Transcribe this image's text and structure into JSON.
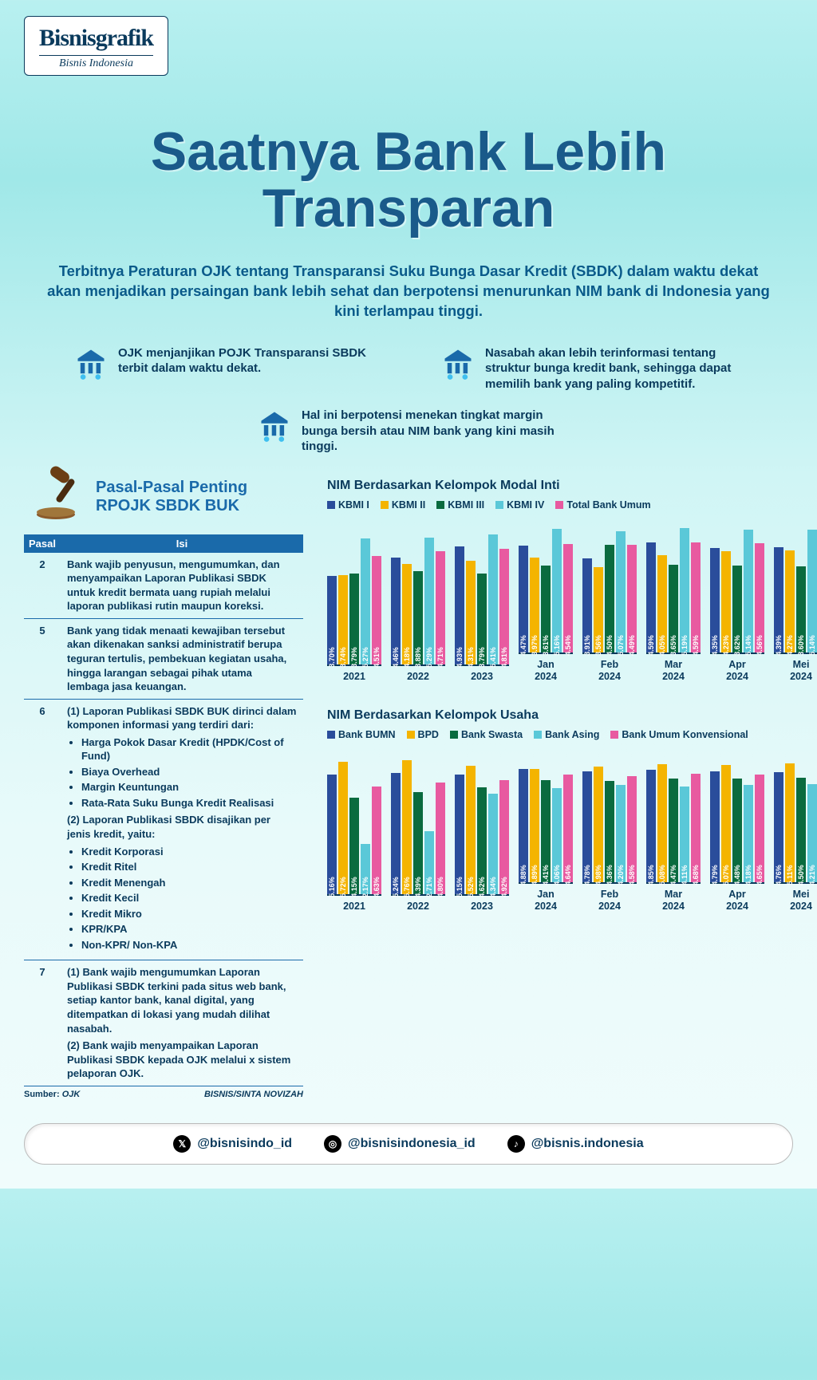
{
  "logo": {
    "main": "Bisnisgrafik",
    "sub": "Bisnis Indonesia"
  },
  "title": "Saatnya Bank Lebih Transparan",
  "subtitle": "Terbitnya Peraturan OJK tentang Transparansi Suku Bunga Dasar Kredit (SBDK) dalam waktu dekat akan menjadikan persaingan bank lebih sehat dan berpotensi menurunkan NIM bank di Indonesia yang kini terlampau tinggi.",
  "bullets": [
    "OJK menjanjikan POJK Transparansi SBDK terbit dalam waktu dekat.",
    "Nasabah akan lebih terinformasi tentang struktur bunga kredit bank, sehingga dapat memilih bank yang paling kompetitif.",
    "Hal ini berpotensi menekan tingkat margin bunga bersih atau NIM bank yang kini masih tinggi."
  ],
  "pasal": {
    "heading": "Pasal-Pasal Penting RPOJK SBDK BUK",
    "headers": [
      "Pasal",
      "Isi"
    ],
    "rows": [
      {
        "num": "2",
        "html": "Bank wajib penyusun, mengumumkan, dan menyampaikan Laporan Publikasi SBDK untuk kredit bermata uang rupiah melalui laporan publikasi rutin maupun koreksi."
      },
      {
        "num": "5",
        "html": "Bank yang tidak menaati kewajiban tersebut akan dikenakan sanksi administratif berupa teguran tertulis, pembekuan kegiatan usaha, hingga larangan sebagai pihak utama lembaga jasa keuangan."
      },
      {
        "num": "6",
        "list6": true
      },
      {
        "num": "7",
        "list7": true
      }
    ],
    "row6": {
      "lead1": "(1)   Laporan Publikasi SBDK BUK dirinci dalam komponen informasi yang terdiri dari:",
      "items1": [
        "Harga Pokok Dasar Kredit (HPDK/Cost of Fund)",
        "Biaya Overhead",
        "Margin Keuntungan",
        "Rata-Rata Suku Bunga Kredit Realisasi"
      ],
      "lead2": "(2)   Laporan Publikasi SBDK disajikan per jenis kredit, yaitu:",
      "items2": [
        "Kredit Korporasi",
        "Kredit Ritel",
        "Kredit Menengah",
        "Kredit Kecil",
        "Kredit Mikro",
        "KPR/KPA",
        "Non-KPR/ Non-KPA"
      ]
    },
    "row7": {
      "p1": "(1)   Bank wajib mengumumkan Laporan Publikasi SBDK terkini pada situs web bank, setiap kantor bank, kanal digital, yang ditempatkan di lokasi yang mudah dilihat nasabah.",
      "p2": "(2)   Bank wajib menyampaikan Laporan Publikasi SBDK kepada OJK melalui x sistem pelaporan OJK."
    },
    "source_label": "Sumber:",
    "source": "OJK",
    "credit": "BISNIS/SINTA NOVIZAH"
  },
  "chart1": {
    "title": "NIM Berdasarkan Kelompok Modal Inti",
    "legend": [
      "KBMI I",
      "KBMI II",
      "KBMI III",
      "KBMI IV",
      "Total Bank Umum"
    ],
    "colors": [
      "#2a4d9b",
      "#f4b400",
      "#0a6b3f",
      "#5ac8d8",
      "#e85aa0"
    ],
    "ylim_max": 6.0,
    "x_labels": [
      "2021",
      "2022",
      "2023",
      "Jan\n2024",
      "Feb\n2024",
      "Mar\n2024",
      "Apr\n2024",
      "Mei\n2024"
    ],
    "data": [
      [
        3.7,
        3.74,
        3.79,
        5.27,
        4.51
      ],
      [
        4.46,
        4.18,
        3.88,
        5.29,
        4.71
      ],
      [
        4.93,
        4.31,
        3.79,
        5.41,
        4.81
      ],
      [
        4.47,
        3.97,
        3.61,
        5.16,
        4.54
      ],
      [
        3.91,
        3.56,
        4.5,
        5.07,
        4.49
      ],
      [
        4.59,
        4.05,
        3.65,
        5.19,
        4.59
      ],
      [
        4.35,
        4.23,
        3.62,
        5.14,
        4.56
      ],
      [
        4.39,
        4.27,
        3.6,
        5.14,
        4.56
      ]
    ]
  },
  "chart2": {
    "title": "NIM Berdasarkan Kelompok Usaha",
    "legend": [
      "Bank BUMN",
      "BPD",
      "Bank Swasta",
      "Bank Asing",
      "Bank Umum Konvensional"
    ],
    "colors": [
      "#2a4d9b",
      "#f4b400",
      "#0a6b3f",
      "#5ac8d8",
      "#e85aa0"
    ],
    "ylim_max": 6.2,
    "x_labels": [
      "2021",
      "2022",
      "2023",
      "Jan\n2024",
      "Feb\n2024",
      "Mar\n2024",
      "Apr\n2024",
      "Mei\n2024"
    ],
    "data": [
      [
        5.16,
        5.72,
        4.15,
        2.17,
        4.63
      ],
      [
        5.24,
        5.76,
        4.39,
        2.71,
        4.8
      ],
      [
        5.15,
        5.52,
        4.62,
        4.34,
        4.92
      ],
      [
        4.88,
        4.89,
        4.41,
        4.06,
        4.64
      ],
      [
        4.78,
        4.98,
        4.36,
        4.2,
        4.58
      ],
      [
        4.85,
        5.08,
        4.47,
        4.11,
        4.68
      ],
      [
        4.79,
        5.07,
        4.48,
        4.18,
        4.65
      ],
      [
        4.76,
        5.11,
        4.5,
        4.21,
        4.65
      ]
    ]
  },
  "social": [
    {
      "icon": "𝕏",
      "handle": "@bisnisindo_id"
    },
    {
      "icon": "◎",
      "handle": "@bisnisindonesia_id"
    },
    {
      "icon": "♪",
      "handle": "@bisnis.indonesia"
    }
  ]
}
